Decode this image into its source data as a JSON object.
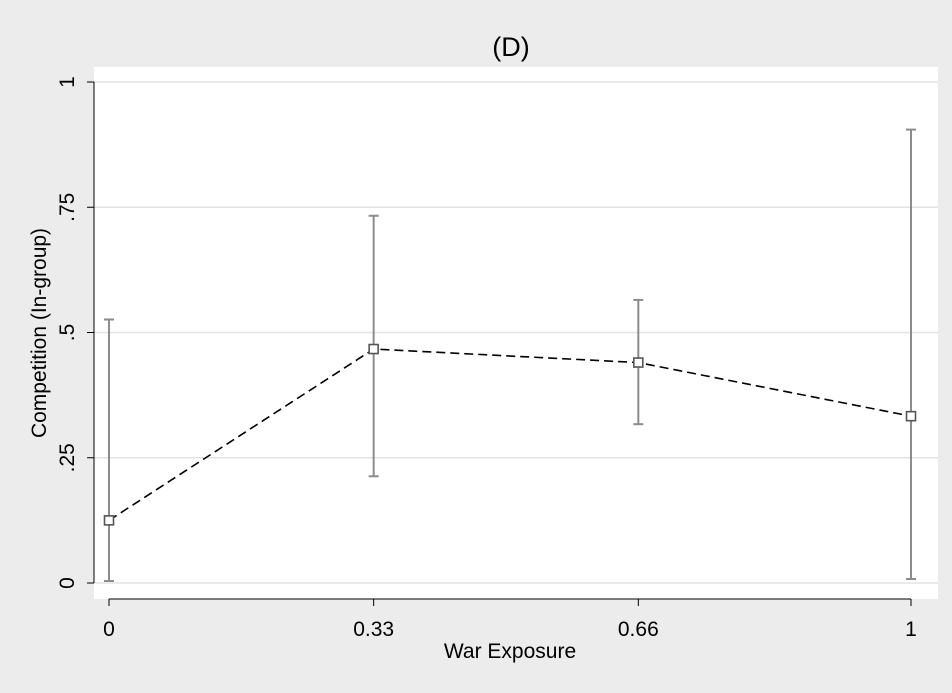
{
  "chart_data": {
    "type": "line",
    "title": "(D)",
    "xlabel": "War Exposure",
    "ylabel": "Competition (In-group)",
    "x": [
      0,
      0.33,
      0.66,
      1
    ],
    "x_tick_labels": [
      "0",
      "0.33",
      "0.66",
      "1"
    ],
    "y_ticks": [
      0,
      0.25,
      0.5,
      0.75,
      1
    ],
    "y_tick_labels": [
      "0",
      ".25",
      ".5",
      ".75",
      "1"
    ],
    "ylim": [
      0,
      1
    ],
    "xlim": [
      0,
      1
    ],
    "grid": true,
    "series": [
      {
        "values": [
          0.125,
          0.467,
          0.44,
          0.333
        ],
        "ci_lower": [
          0.004,
          0.213,
          0.317,
          0.008
        ],
        "ci_upper": [
          0.526,
          0.733,
          0.565,
          0.905
        ],
        "line_style": "dashed",
        "marker": "hollow-square"
      }
    ],
    "colors": {
      "background": "#ececec",
      "plot_area": "#ffffff",
      "grid": "#e3e3e3",
      "error_bar": "#8c8c8c",
      "line": "#000000",
      "marker": "#555555"
    }
  }
}
